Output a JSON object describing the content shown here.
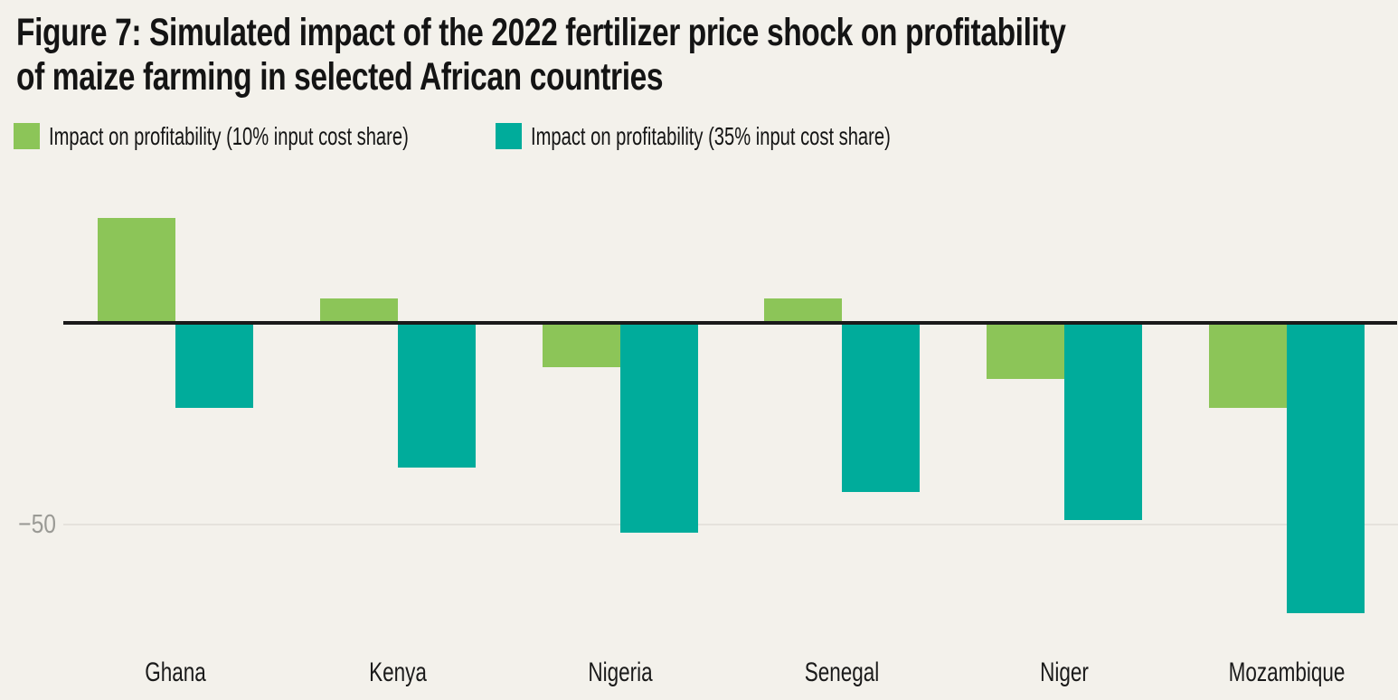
{
  "figure": {
    "title_line1": "Figure 7: Simulated impact of the 2022 fertilizer price shock on profitability",
    "title_line2": "of maize farming in selected African countries"
  },
  "axis": {
    "tick_label": "−50"
  },
  "colors": {
    "background": "#F3F1EB",
    "series_10pct": "#8CC558",
    "series_35pct": "#00AC9B",
    "zero_line": "#1A1A1A",
    "gridline": "#E5E2DC",
    "tick_text": "#9A9A95",
    "title_text": "#141414"
  },
  "chart_data": {
    "type": "bar",
    "title": "Figure 7: Simulated impact of the 2022 fertilizer price shock on profitability of maize farming in selected African countries",
    "categories": [
      "Ghana",
      "Kenya",
      "Nigeria",
      "Senegal",
      "Niger",
      "Mozambique"
    ],
    "series": [
      {
        "name": "Impact on profitability (10% input cost share)",
        "color": "#8CC558",
        "values": [
          26,
          6,
          -11,
          6,
          -14,
          -21
        ]
      },
      {
        "name": "Impact on profitability (35% input cost share)",
        "color": "#00AC9B",
        "values": [
          -21,
          -36,
          -52,
          -42,
          -49,
          -72
        ]
      }
    ],
    "xlabel": "",
    "ylabel": "",
    "yticks": [
      0,
      -50
    ],
    "ylim": [
      -75,
      33
    ],
    "grid": "single horizontal gridline at -50, solid black zero baseline",
    "legend_position": "top-left, horizontal"
  }
}
